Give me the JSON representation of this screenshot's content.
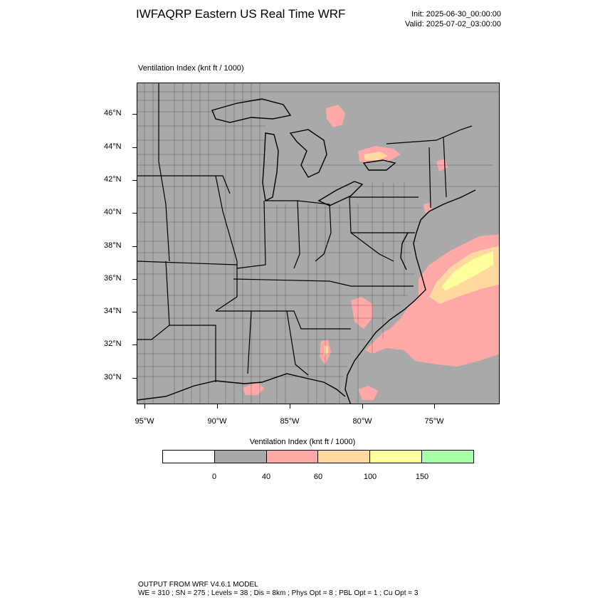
{
  "header": {
    "title": "IWFAQRP Eastern US Real Time WRF",
    "init": "Init: 2025-06-30_00:00:00",
    "valid": "Valid: 2025-07-02_03:00:00"
  },
  "map": {
    "field_label": "Ventilation Index   (knt ft / 1000)",
    "lat_labels": [
      "46°N",
      "44°N",
      "42°N",
      "40°N",
      "38°N",
      "36°N",
      "34°N",
      "32°N",
      "30°N"
    ],
    "lon_labels": [
      "95°W",
      "90°W",
      "85°W",
      "80°W",
      "75°W"
    ],
    "colors": {
      "land": "#a9a9a9",
      "band_40_60": "#ffa8a8",
      "band_60_100": "#ffd9a0",
      "band_100_150": "#ffff9e",
      "lines": "#000000"
    }
  },
  "legend": {
    "title": "Ventilation Index  (knt ft / 1000)",
    "colors": [
      "#ffffff",
      "#a9a9a9",
      "#ffa8a8",
      "#ffd9a0",
      "#ffff9e",
      "#a8ffa8"
    ],
    "ticks": [
      "0",
      "40",
      "60",
      "100",
      "150"
    ]
  },
  "footer": {
    "line1": "OUTPUT FROM WRF V4.6.1 MODEL",
    "line2": "WE = 310 ; SN = 275 ; Levels = 38 ; Dis = 8km ; Phys Opt = 8 ; PBL Opt = 1 ; Cu Opt = 3"
  }
}
